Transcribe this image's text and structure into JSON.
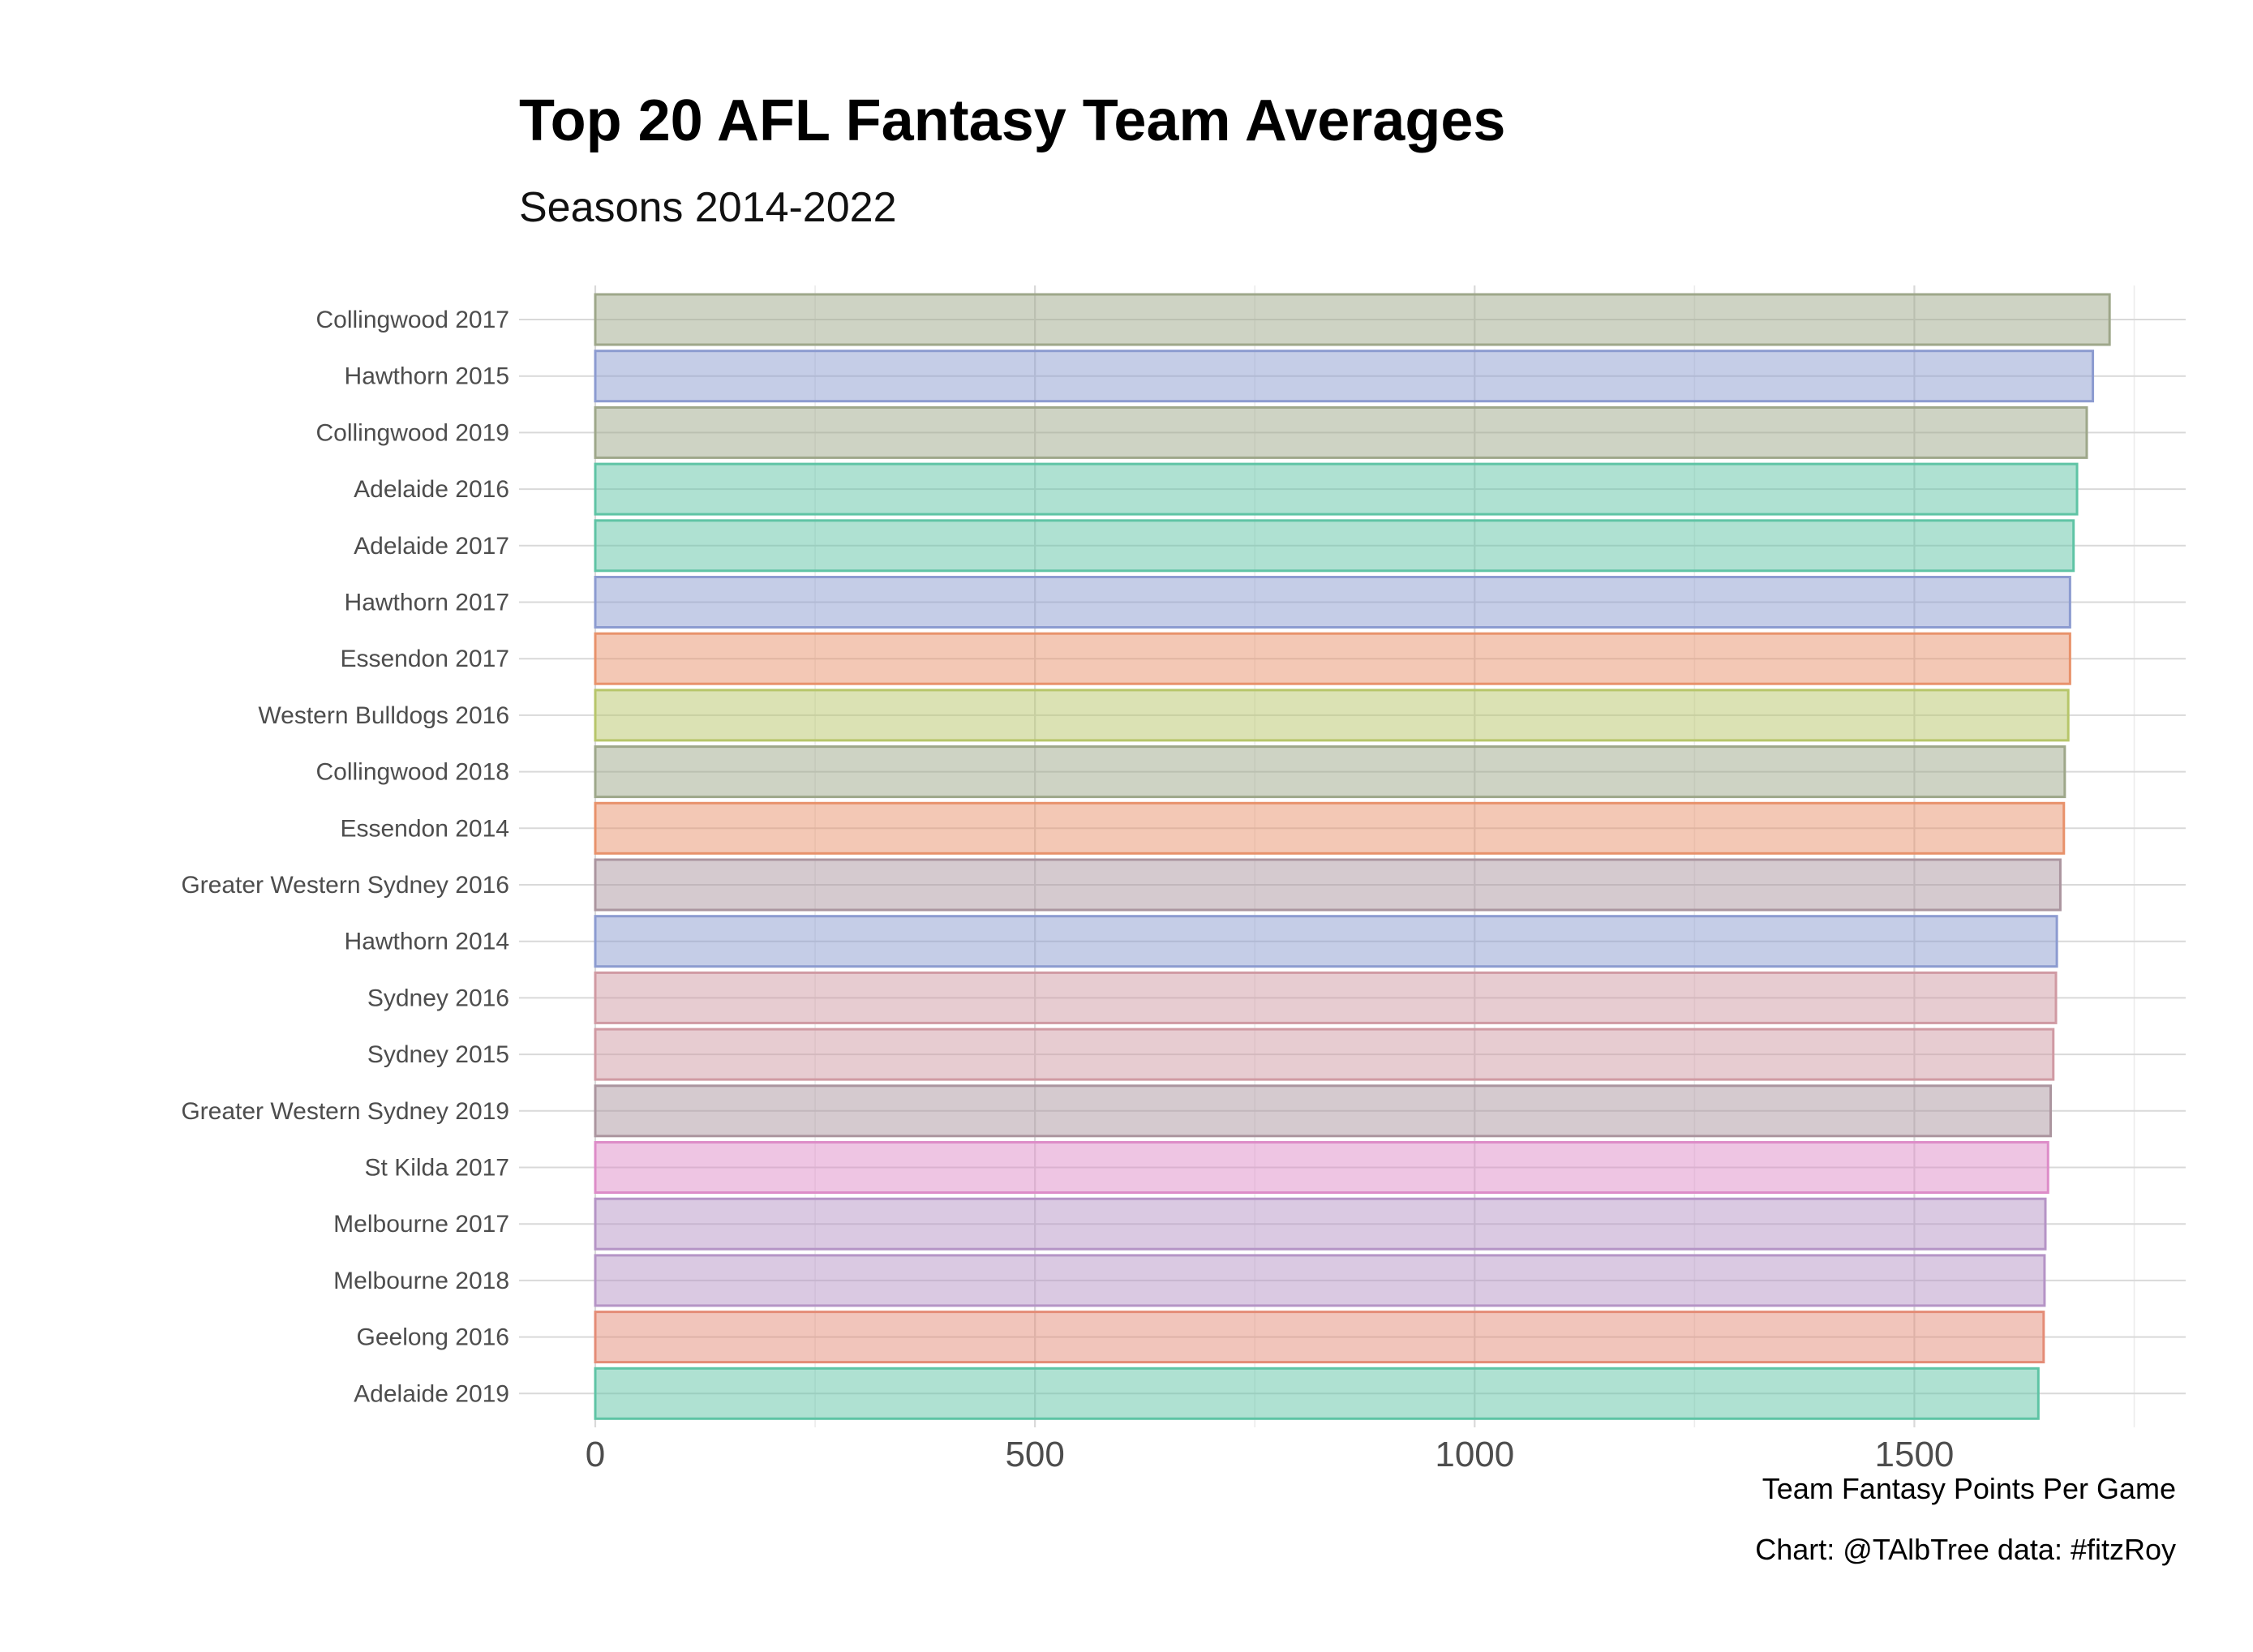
{
  "chart_data": {
    "type": "bar",
    "orientation": "horizontal",
    "title": "Top 20 AFL Fantasy Team Averages",
    "subtitle": "Seasons 2014-2022",
    "xlabel": "Team Fantasy Points Per Game",
    "ylabel": "",
    "caption": "Chart: @TAlbTree data: #fitzRoy",
    "xlim": [
      0,
      1800
    ],
    "xticks": [
      0,
      500,
      1000,
      1500
    ],
    "grid": true,
    "legend": "none",
    "categories": [
      "Collingwood 2017",
      "Hawthorn 2015",
      "Collingwood 2019",
      "Adelaide 2016",
      "Adelaide 2017",
      "Hawthorn 2017",
      "Essendon 2017",
      "Western Bulldogs 2016",
      "Collingwood 2018",
      "Essendon 2014",
      "Greater Western Sydney 2016",
      "Hawthorn 2014",
      "Sydney 2016",
      "Sydney 2015",
      "Greater Western Sydney 2019",
      "St Kilda 2017",
      "Melbourne 2017",
      "Melbourne 2018",
      "Geelong 2016",
      "Adelaide 2019"
    ],
    "values": [
      1722,
      1703,
      1696,
      1685,
      1681,
      1677,
      1677,
      1675,
      1671,
      1670,
      1666,
      1662,
      1661,
      1658,
      1655,
      1652,
      1649,
      1648,
      1647,
      1641
    ],
    "colors": [
      "#9EA78A",
      "#8C9BD0",
      "#9EA78A",
      "#5FC4A5",
      "#5FC4A5",
      "#8C9BD0",
      "#E8926B",
      "#B7C66A",
      "#9EA78A",
      "#E8926B",
      "#AB959F",
      "#8C9BD0",
      "#D09AA3",
      "#D09AA3",
      "#AB959F",
      "#DD8CC8",
      "#B594C6",
      "#B594C6",
      "#E48C77",
      "#5FC4A5"
    ]
  }
}
